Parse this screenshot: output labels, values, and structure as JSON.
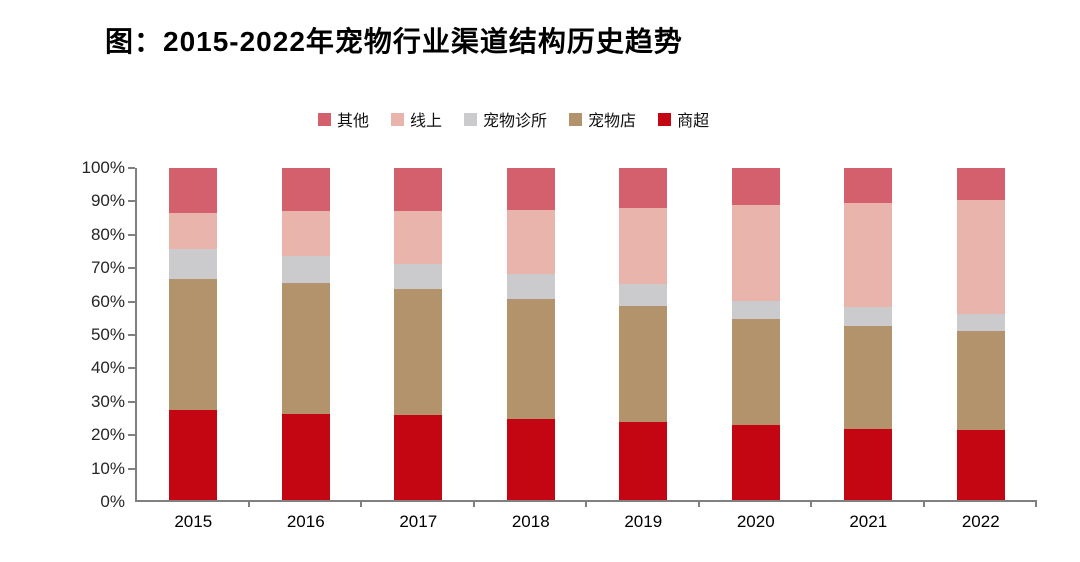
{
  "title": "图：2015-2022年宠物行业渠道结构历史趋势",
  "chart_data": {
    "type": "bar",
    "stacked": true,
    "title": "图：2015-2022年宠物行业渠道结构历史趋势",
    "categories": [
      "2015",
      "2016",
      "2017",
      "2018",
      "2019",
      "2020",
      "2021",
      "2022"
    ],
    "series": [
      {
        "name": "商超",
        "color": "#c40613",
        "values": [
          27,
          26,
          25.5,
          24.5,
          23.5,
          22.5,
          21.5,
          21
        ]
      },
      {
        "name": "宠物店",
        "color": "#b3936c",
        "values": [
          39.5,
          39.5,
          38,
          36,
          35,
          32,
          31,
          30
        ]
      },
      {
        "name": "宠物诊所",
        "color": "#cbcbcd",
        "values": [
          9,
          8,
          7.5,
          7.5,
          6.5,
          5.5,
          5.5,
          5
        ]
      },
      {
        "name": "线上",
        "color": "#e9b4ac",
        "values": [
          11,
          13.5,
          16,
          19.5,
          23,
          29,
          31.5,
          34.5
        ]
      },
      {
        "name": "其他",
        "color": "#d4606d",
        "values": [
          13.5,
          13,
          13,
          12.5,
          12,
          11,
          10.5,
          9.5
        ]
      }
    ],
    "legend": [
      {
        "label": "其他",
        "color": "#d4606d"
      },
      {
        "label": "线上",
        "color": "#e9b4ac"
      },
      {
        "label": "宠物诊所",
        "color": "#cbcbcd"
      },
      {
        "label": "宠物店",
        "color": "#b3936c"
      },
      {
        "label": "商超",
        "color": "#c40613"
      }
    ],
    "legend_position": "top",
    "xlabel": "",
    "ylabel": "",
    "ylim": [
      0,
      100
    ],
    "yticks": [
      "0%",
      "10%",
      "20%",
      "30%",
      "40%",
      "50%",
      "60%",
      "70%",
      "80%",
      "90%",
      "100%"
    ],
    "grid": false,
    "axis_color": "#808080",
    "unit": "percent"
  }
}
